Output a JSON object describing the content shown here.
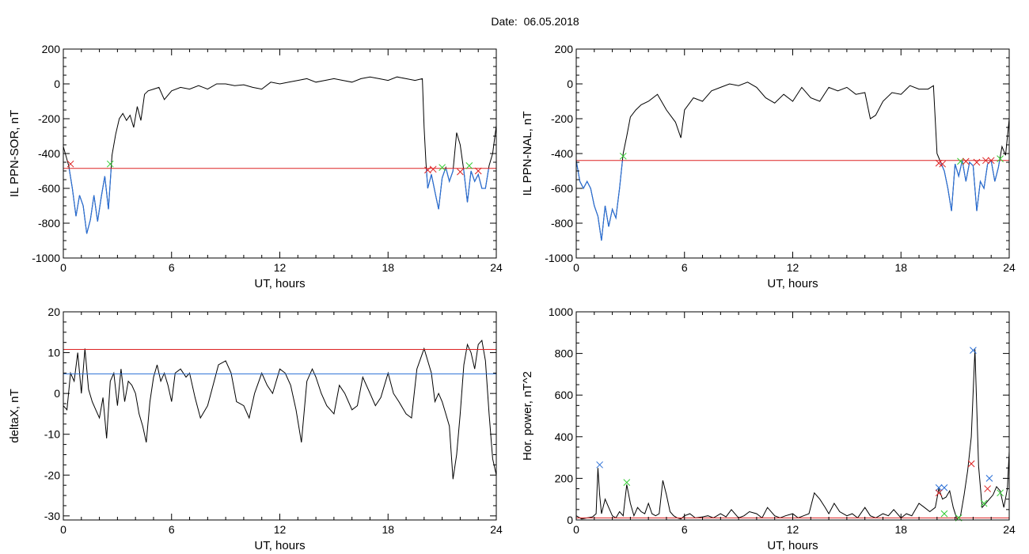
{
  "page_title": "Date:  06.05.2018",
  "colors": {
    "trace": "#000000",
    "threshold_red": "#dd2222",
    "threshold_blue": "#2a6fd6",
    "substorm_blue": "#2a6fd6",
    "marker_red": "#dd2222",
    "marker_green": "#33cc33"
  },
  "chart_data": [
    {
      "id": "sor",
      "type": "line",
      "xlabel": "UT, hours",
      "ylabel": "IL PPN-SOR, nT",
      "xlim": [
        0,
        24
      ],
      "ylim": [
        -1000,
        200
      ],
      "xticks": [
        "0",
        "6",
        "12",
        "18",
        "24"
      ],
      "yticks": [
        "-1000",
        "-800",
        "-600",
        "-400",
        "-200",
        "0",
        "200"
      ],
      "threshold_red": -485,
      "below_threshold_blue": true,
      "series": [
        {
          "x": [
            0,
            0.3,
            0.5,
            0.7,
            0.9,
            1.1,
            1.3,
            1.5,
            1.7,
            1.9,
            2.1,
            2.3,
            2.5,
            2.7,
            2.9,
            3.1,
            3.3,
            3.5,
            3.7,
            3.9,
            4.1,
            4.3,
            4.5,
            4.7,
            5.0,
            5.3,
            5.6,
            6.0,
            6.5,
            7.0,
            7.5,
            8.0,
            8.5,
            9.0,
            9.5,
            10.0,
            10.5,
            11.0,
            11.5,
            12.0,
            12.5,
            13.0,
            13.5,
            14.0,
            14.5,
            15.0,
            15.5,
            16.0,
            16.5,
            17.0,
            17.5,
            18.0,
            18.5,
            19.0,
            19.5,
            19.9,
            20.0,
            20.1,
            20.2,
            20.4,
            20.6,
            20.8,
            21.0,
            21.2,
            21.4,
            21.6,
            21.8,
            22.0,
            22.2,
            22.4,
            22.6,
            22.8,
            23.0,
            23.2,
            23.4,
            23.6,
            23.8,
            24.0
          ],
          "y": [
            -360,
            -470,
            -600,
            -760,
            -640,
            -700,
            -860,
            -780,
            -640,
            -790,
            -650,
            -530,
            -720,
            -410,
            -290,
            -200,
            -170,
            -210,
            -180,
            -250,
            -130,
            -210,
            -60,
            -40,
            -30,
            -20,
            -90,
            -40,
            -20,
            -30,
            -10,
            -30,
            0,
            0,
            -10,
            -5,
            -20,
            -30,
            10,
            0,
            10,
            20,
            30,
            10,
            20,
            30,
            20,
            10,
            30,
            40,
            30,
            20,
            40,
            30,
            20,
            30,
            -250,
            -450,
            -600,
            -520,
            -620,
            -720,
            -540,
            -480,
            -560,
            -500,
            -280,
            -350,
            -500,
            -680,
            -500,
            -560,
            -520,
            -600,
            -600,
            -470,
            -400,
            -240
          ]
        }
      ],
      "markers": [
        {
          "x": 0.4,
          "y": -460,
          "color": "red"
        },
        {
          "x": 2.6,
          "y": -460,
          "color": "green"
        },
        {
          "x": 20.2,
          "y": -495,
          "color": "red"
        },
        {
          "x": 20.5,
          "y": -490,
          "color": "red"
        },
        {
          "x": 21.0,
          "y": -480,
          "color": "green"
        },
        {
          "x": 22.0,
          "y": -505,
          "color": "red"
        },
        {
          "x": 22.5,
          "y": -470,
          "color": "green"
        },
        {
          "x": 23.0,
          "y": -500,
          "color": "red"
        }
      ]
    },
    {
      "id": "nal",
      "type": "line",
      "xlabel": "UT, hours",
      "ylabel": "IL PPN-NAL, nT",
      "xlim": [
        0,
        24
      ],
      "ylim": [
        -1000,
        200
      ],
      "xticks": [
        "0",
        "6",
        "12",
        "18",
        "24"
      ],
      "yticks": [
        "-1000",
        "-800",
        "-600",
        "-400",
        "-200",
        "0",
        "200"
      ],
      "threshold_red": -440,
      "below_threshold_blue": true,
      "series": [
        {
          "x": [
            0,
            0.2,
            0.4,
            0.6,
            0.8,
            1.0,
            1.2,
            1.4,
            1.6,
            1.8,
            2.0,
            2.2,
            2.4,
            2.6,
            2.8,
            3.0,
            3.3,
            3.6,
            4.0,
            4.5,
            5.0,
            5.5,
            5.8,
            6.0,
            6.5,
            7.0,
            7.5,
            8.0,
            8.5,
            9.0,
            9.5,
            10.0,
            10.5,
            11.0,
            11.5,
            12.0,
            12.5,
            13.0,
            13.5,
            14.0,
            14.5,
            15.0,
            15.5,
            16.0,
            16.3,
            16.6,
            17.0,
            17.5,
            18.0,
            18.5,
            19.0,
            19.5,
            19.8,
            20.0,
            20.2,
            20.4,
            20.6,
            20.8,
            21.0,
            21.2,
            21.4,
            21.6,
            21.8,
            22.0,
            22.2,
            22.4,
            22.6,
            22.8,
            23.0,
            23.2,
            23.4,
            23.6,
            23.8,
            24.0
          ],
          "y": [
            -440,
            -560,
            -600,
            -560,
            -600,
            -700,
            -760,
            -900,
            -700,
            -820,
            -720,
            -770,
            -600,
            -400,
            -300,
            -190,
            -150,
            -120,
            -100,
            -60,
            -150,
            -220,
            -310,
            -150,
            -80,
            -100,
            -40,
            -20,
            0,
            -10,
            10,
            -20,
            -80,
            -110,
            -60,
            -100,
            -20,
            -80,
            -100,
            -20,
            -40,
            -20,
            -60,
            -50,
            -200,
            -180,
            -100,
            -50,
            -60,
            -10,
            -30,
            -30,
            -10,
            -400,
            -450,
            -500,
            -600,
            -730,
            -460,
            -530,
            -440,
            -560,
            -450,
            -470,
            -730,
            -560,
            -600,
            -460,
            -440,
            -560,
            -480,
            -360,
            -410,
            -200
          ]
        }
      ],
      "markers": [
        {
          "x": 2.6,
          "y": -415,
          "color": "green"
        },
        {
          "x": 20.1,
          "y": -455,
          "color": "red"
        },
        {
          "x": 20.3,
          "y": -460,
          "color": "red"
        },
        {
          "x": 21.3,
          "y": -445,
          "color": "green"
        },
        {
          "x": 21.6,
          "y": -445,
          "color": "red"
        },
        {
          "x": 22.2,
          "y": -450,
          "color": "red"
        },
        {
          "x": 22.7,
          "y": -440,
          "color": "red"
        },
        {
          "x": 23.0,
          "y": -440,
          "color": "red"
        },
        {
          "x": 23.5,
          "y": -430,
          "color": "green"
        }
      ]
    },
    {
      "id": "deltax",
      "type": "line",
      "xlabel": "UT, hours",
      "ylabel": "deltaX, nT",
      "xlim": [
        0,
        24
      ],
      "ylim": [
        -31,
        20
      ],
      "xticks": [
        "0",
        "6",
        "12",
        "18",
        "24"
      ],
      "yticks": [
        "-30",
        "-20",
        "-10",
        "0",
        "10",
        "20"
      ],
      "threshold_red": 10.8,
      "threshold_blue": 4.8,
      "below_threshold_blue": false,
      "series": [
        {
          "x": [
            0,
            0.2,
            0.4,
            0.6,
            0.8,
            1.0,
            1.2,
            1.4,
            1.6,
            1.8,
            2.0,
            2.2,
            2.4,
            2.6,
            2.8,
            3.0,
            3.2,
            3.4,
            3.6,
            3.8,
            4.0,
            4.2,
            4.4,
            4.6,
            4.8,
            5.0,
            5.2,
            5.4,
            5.6,
            5.8,
            6.0,
            6.2,
            6.5,
            6.8,
            7.0,
            7.3,
            7.6,
            8.0,
            8.3,
            8.6,
            9.0,
            9.3,
            9.6,
            10.0,
            10.3,
            10.6,
            11.0,
            11.3,
            11.6,
            12.0,
            12.3,
            12.6,
            12.9,
            13.2,
            13.5,
            13.8,
            14.0,
            14.3,
            14.6,
            15.0,
            15.3,
            15.6,
            16.0,
            16.3,
            16.6,
            17.0,
            17.3,
            17.6,
            18.0,
            18.3,
            18.6,
            19.0,
            19.3,
            19.6,
            20.0,
            20.2,
            20.4,
            20.6,
            20.8,
            21.0,
            21.2,
            21.4,
            21.6,
            21.8,
            22.0,
            22.2,
            22.4,
            22.6,
            22.8,
            23.0,
            23.2,
            23.4,
            23.6,
            23.8,
            24.0
          ],
          "y": [
            -3,
            -4,
            5,
            3,
            10,
            0,
            11,
            1,
            -2,
            -4,
            -6,
            -1,
            -11,
            3,
            5,
            -3,
            6,
            -2,
            3,
            2,
            0,
            -5,
            -8,
            -12,
            -2,
            4,
            7,
            3,
            5,
            2,
            -2,
            5,
            6,
            4,
            5,
            -1,
            -6,
            -3,
            2,
            7,
            8,
            5,
            -2,
            -3,
            -6,
            0,
            5,
            2,
            0,
            6,
            5,
            2,
            -4,
            -12,
            3,
            6,
            4,
            0,
            -3,
            -5,
            2,
            0,
            -4,
            -3,
            4,
            0,
            -3,
            -1,
            5,
            0,
            -2,
            -5,
            -6,
            6,
            11,
            8,
            5,
            -2,
            0,
            -2,
            -5,
            -8,
            -21,
            -15,
            -5,
            7,
            12,
            10,
            6,
            12,
            13,
            8,
            -5,
            -16,
            -20
          ]
        }
      ],
      "markers": []
    },
    {
      "id": "power",
      "type": "line",
      "xlabel": "UT, hours",
      "ylabel": "Hor. power, nT^2",
      "xlim": [
        0,
        24
      ],
      "ylim": [
        0,
        1000
      ],
      "xticks": [
        "0",
        "6",
        "12",
        "18",
        "24"
      ],
      "yticks": [
        "0",
        "200",
        "400",
        "600",
        "800",
        "1000"
      ],
      "threshold_red": 10,
      "below_threshold_blue": false,
      "series": [
        {
          "x": [
            0,
            0.3,
            0.6,
            0.9,
            1.1,
            1.2,
            1.3,
            1.4,
            1.6,
            1.8,
            2.0,
            2.2,
            2.4,
            2.6,
            2.8,
            3.0,
            3.2,
            3.4,
            3.6,
            3.8,
            4.0,
            4.2,
            4.4,
            4.6,
            4.8,
            5.0,
            5.2,
            5.4,
            5.6,
            5.8,
            6.0,
            6.3,
            6.6,
            7.0,
            7.3,
            7.6,
            8.0,
            8.3,
            8.6,
            9.0,
            9.3,
            9.6,
            10.0,
            10.3,
            10.6,
            11.0,
            11.3,
            11.6,
            12.0,
            12.3,
            12.6,
            12.9,
            13.2,
            13.5,
            13.8,
            14.0,
            14.3,
            14.6,
            15.0,
            15.3,
            15.6,
            16.0,
            16.3,
            16.6,
            17.0,
            17.3,
            17.6,
            18.0,
            18.3,
            18.6,
            19.0,
            19.3,
            19.6,
            19.9,
            20.1,
            20.3,
            20.5,
            20.7,
            20.9,
            21.1,
            21.3,
            21.5,
            21.7,
            21.9,
            22.1,
            22.3,
            22.5,
            22.7,
            22.9,
            23.1,
            23.3,
            23.5,
            23.7,
            23.9,
            24.0
          ],
          "y": [
            20,
            5,
            10,
            15,
            30,
            250,
            120,
            30,
            100,
            60,
            20,
            10,
            40,
            20,
            170,
            80,
            20,
            60,
            40,
            30,
            80,
            30,
            20,
            30,
            190,
            120,
            40,
            20,
            10,
            5,
            20,
            30,
            10,
            15,
            20,
            10,
            30,
            15,
            50,
            10,
            20,
            40,
            30,
            10,
            60,
            20,
            10,
            20,
            30,
            10,
            20,
            30,
            130,
            100,
            60,
            30,
            80,
            40,
            20,
            30,
            10,
            60,
            20,
            10,
            30,
            20,
            50,
            10,
            30,
            20,
            80,
            60,
            40,
            60,
            150,
            100,
            110,
            140,
            60,
            5,
            20,
            120,
            240,
            400,
            820,
            260,
            60,
            80,
            100,
            120,
            160,
            140,
            60,
            150,
            330
          ]
        }
      ],
      "markers": [
        {
          "x": 1.3,
          "y": 265,
          "color": "blue"
        },
        {
          "x": 2.8,
          "y": 180,
          "color": "green"
        },
        {
          "x": 20.1,
          "y": 155,
          "color": "blue"
        },
        {
          "x": 20.4,
          "y": 155,
          "color": "blue"
        },
        {
          "x": 20.1,
          "y": 130,
          "color": "red"
        },
        {
          "x": 20.4,
          "y": 30,
          "color": "green"
        },
        {
          "x": 21.2,
          "y": 10,
          "color": "green"
        },
        {
          "x": 21.9,
          "y": 270,
          "color": "red"
        },
        {
          "x": 22.0,
          "y": 815,
          "color": "blue"
        },
        {
          "x": 22.8,
          "y": 150,
          "color": "red"
        },
        {
          "x": 22.9,
          "y": 200,
          "color": "blue"
        },
        {
          "x": 23.5,
          "y": 130,
          "color": "green"
        },
        {
          "x": 22.6,
          "y": 80,
          "color": "green"
        }
      ]
    }
  ]
}
